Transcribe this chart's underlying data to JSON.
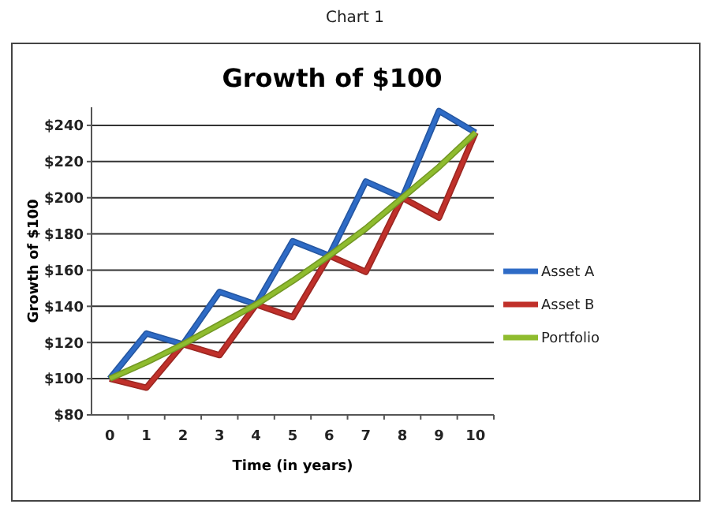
{
  "chart_data": {
    "type": "line",
    "title": "Growth of $100",
    "annotations": [
      "Chart 1"
    ],
    "xlabel": "Time (in years)",
    "ylabel": "Growth of $100",
    "categories": [
      "0",
      "1",
      "2",
      "3",
      "4",
      "5",
      "6",
      "7",
      "8",
      "9",
      "10"
    ],
    "series": [
      {
        "name": "Asset A",
        "color": "#2e6bc6",
        "values": [
          100,
          125,
          119,
          148,
          141,
          176,
          168,
          209,
          200,
          248,
          236
        ]
      },
      {
        "name": "Asset B",
        "color": "#c0302a",
        "values": [
          100,
          95,
          119,
          113,
          141,
          134,
          168,
          159,
          200,
          189,
          236
        ]
      },
      {
        "name": "Portfolio",
        "color": "#8fbc2e",
        "values": [
          100,
          109,
          119,
          130,
          141,
          154,
          168,
          183,
          200,
          217,
          236
        ]
      }
    ],
    "ylim": [
      80,
      250
    ],
    "yticks": [
      {
        "value": 80,
        "label": "$80"
      },
      {
        "value": 100,
        "label": "$100"
      },
      {
        "value": 120,
        "label": "$120"
      },
      {
        "value": 140,
        "label": "$140"
      },
      {
        "value": 160,
        "label": "$160"
      },
      {
        "value": 180,
        "label": "$180"
      },
      {
        "value": 200,
        "label": "$200"
      },
      {
        "value": 220,
        "label": "$220"
      },
      {
        "value": 240,
        "label": "$240"
      }
    ],
    "grid": "y",
    "legend": "right",
    "marker": "none",
    "line_style": "solid"
  }
}
